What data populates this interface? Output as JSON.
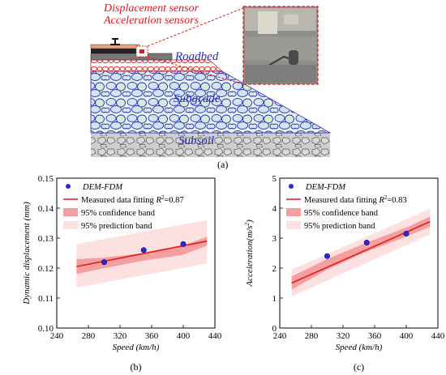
{
  "diagram": {
    "sensor_label_1": "Displacement sensor",
    "sensor_label_2": "Acceleration sensors",
    "layers": [
      "Roadbed",
      "Subgrade",
      "Subsoil"
    ],
    "label": "(a)"
  },
  "chart_data": [
    {
      "type": "scatter",
      "panel": "(b)",
      "xlabel": "Speed (km/h)",
      "ylabel": "Dynamic displacement (mm)",
      "xlim": [
        240,
        440
      ],
      "ylim": [
        0.1,
        0.15
      ],
      "xticks": [
        240,
        280,
        320,
        360,
        400,
        440
      ],
      "yticks": [
        0.1,
        0.11,
        0.12,
        0.13,
        0.14,
        0.15
      ],
      "ytick_labels": [
        "0.10",
        "0.11",
        "0.12",
        "0.13",
        "0.14",
        "0.15"
      ],
      "legend": {
        "points": "DEM-FDM",
        "fit_prefix": "Measured data fitting ",
        "fit_r2": "=0.87",
        "confidence": "95% confidence band",
        "prediction": "95% prediction band"
      },
      "points": [
        {
          "x": 300,
          "y": 0.122
        },
        {
          "x": 350,
          "y": 0.126
        },
        {
          "x": 400,
          "y": 0.128
        }
      ],
      "fit": {
        "x": [
          265,
          430
        ],
        "y": [
          0.1205,
          0.129
        ]
      },
      "confidence_band": {
        "x": [
          265,
          300,
          350,
          400,
          430
        ],
        "upper": [
          0.123,
          0.1235,
          0.125,
          0.1275,
          0.1305
        ],
        "lower": [
          0.118,
          0.12,
          0.1225,
          0.1245,
          0.1275
        ]
      },
      "prediction_band": {
        "x": [
          265,
          430
        ],
        "upper": [
          0.128,
          0.136
        ],
        "lower": [
          0.1135,
          0.1215
        ]
      },
      "colors": {
        "points": "#2929d8",
        "fit": "#e41a1c",
        "confidence": "#f5a0a0",
        "prediction": "#fde0e0"
      }
    },
    {
      "type": "scatter",
      "panel": "(c)",
      "xlabel": "Speed (km/h)",
      "ylabel": "Acceleration(m/s",
      "ylabel_sup": "2",
      "ylabel_end": ")",
      "xlim": [
        240,
        440
      ],
      "ylim": [
        0,
        5
      ],
      "xticks": [
        240,
        280,
        320,
        360,
        400,
        440
      ],
      "yticks": [
        0,
        1,
        2,
        3,
        4,
        5
      ],
      "ytick_labels": [
        "0",
        "1",
        "2",
        "3",
        "4",
        "5"
      ],
      "legend": {
        "points": "DEM-FDM",
        "fit_prefix": "Measured data fitting ",
        "fit_r2": "=0.83",
        "confidence": "95% confidence band",
        "prediction": "95% prediction band"
      },
      "points": [
        {
          "x": 300,
          "y": 2.4
        },
        {
          "x": 350,
          "y": 2.85
        },
        {
          "x": 400,
          "y": 3.15
        }
      ],
      "fit": {
        "x": [
          255,
          430
        ],
        "y": [
          1.5,
          3.55
        ]
      },
      "confidence_band": {
        "x": [
          255,
          300,
          350,
          400,
          430
        ],
        "upper": [
          1.72,
          2.3,
          2.85,
          3.35,
          3.72
        ],
        "lower": [
          1.28,
          1.95,
          2.55,
          3.05,
          3.38
        ]
      },
      "prediction_band": {
        "x": [
          255,
          430
        ],
        "upper": [
          1.95,
          3.98
        ],
        "lower": [
          1.05,
          3.12
        ]
      },
      "colors": {
        "points": "#2929d8",
        "fit": "#e41a1c",
        "confidence": "#f5a0a0",
        "prediction": "#fde0e0"
      }
    }
  ]
}
